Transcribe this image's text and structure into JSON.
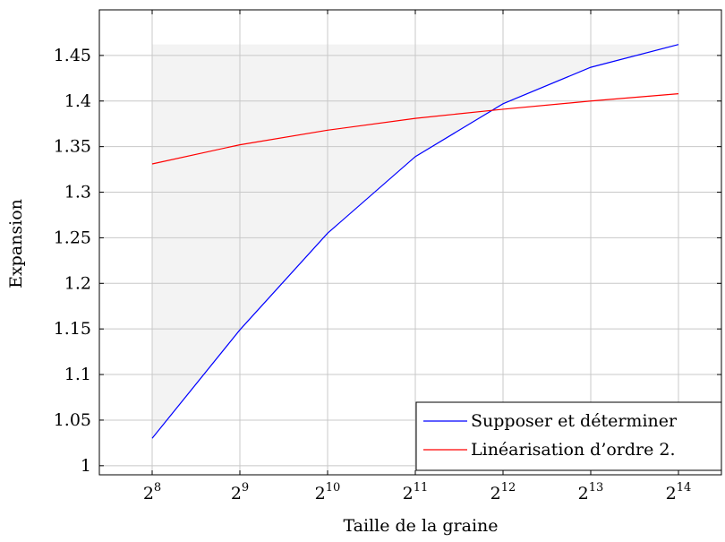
{
  "chart_data": {
    "type": "line",
    "xlabel": "Taille de la graine",
    "ylabel": "Expansion",
    "x_base": "2",
    "x_exponents": [
      "8",
      "9",
      "10",
      "11",
      "12",
      "13",
      "14"
    ],
    "x": [
      256,
      512,
      1024,
      2048,
      4096,
      8192,
      16384
    ],
    "x_scale": "log2",
    "ylim": [
      0.99,
      1.5
    ],
    "y_ticks": [
      1,
      1.05,
      1.1,
      1.15,
      1.2,
      1.25,
      1.3,
      1.35,
      1.4,
      1.45
    ],
    "y_tick_labels": [
      "1",
      "1.05",
      "1.1",
      "1.15",
      "1.2",
      "1.25",
      "1.3",
      "1.35",
      "1.4",
      "1.45"
    ],
    "grid": true,
    "legend_position": "bottom-right",
    "series": [
      {
        "name": "Supposer et déterminer",
        "color": "#0000ff",
        "values": [
          1.03,
          1.149,
          1.255,
          1.339,
          1.397,
          1.437,
          1.462
        ]
      },
      {
        "name": "Linéarisation d’ordre 2.",
        "color": "#ff0000",
        "values": [
          1.331,
          1.352,
          1.368,
          1.381,
          1.391,
          1.4,
          1.408
        ]
      }
    ],
    "shaded_region": {
      "fill": "#f3f3f3",
      "y_top": 1.462
    }
  }
}
